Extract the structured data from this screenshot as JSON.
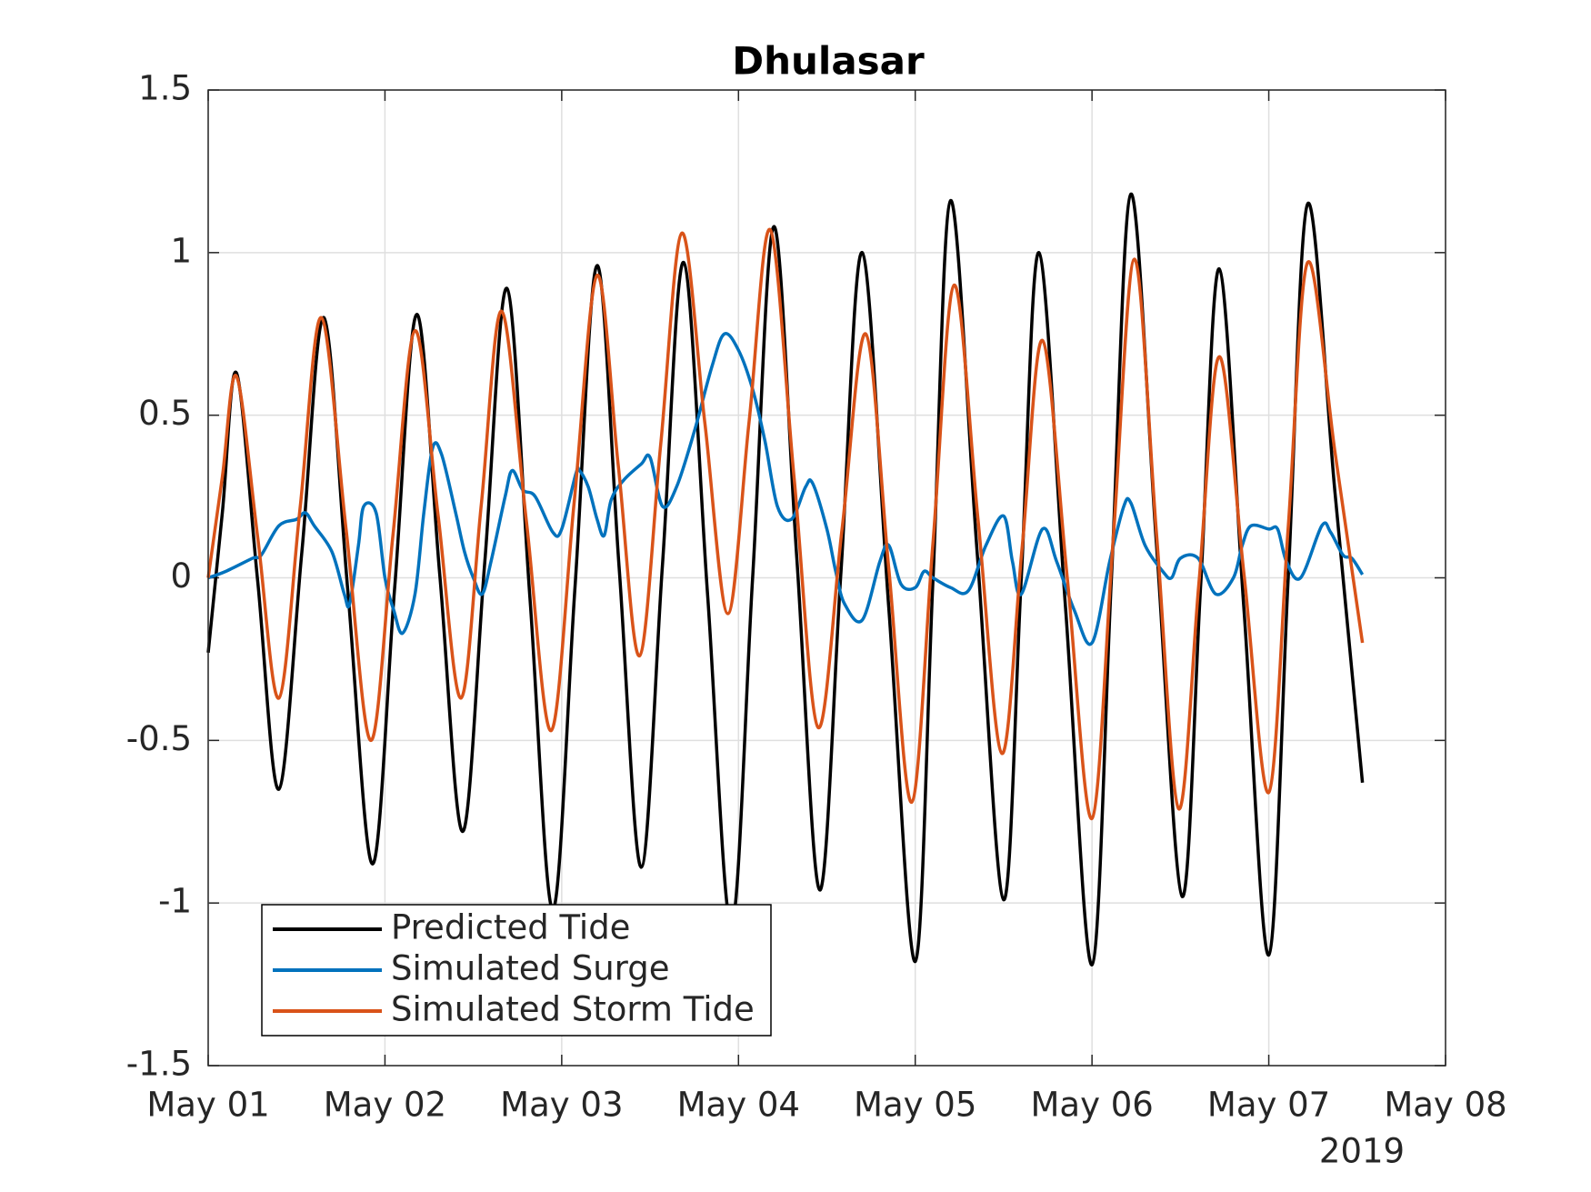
{
  "chart_data": {
    "type": "line",
    "title": "Dhulasar",
    "xlim": [
      0,
      7
    ],
    "xticks": [
      {
        "value": 0,
        "label": "May 01"
      },
      {
        "value": 1,
        "label": "May 02"
      },
      {
        "value": 2,
        "label": "May 03"
      },
      {
        "value": 3,
        "label": "May 04"
      },
      {
        "value": 4,
        "label": "May 05"
      },
      {
        "value": 5,
        "label": "May 06"
      },
      {
        "value": 6,
        "label": "May 07"
      },
      {
        "value": 7,
        "label": "May 08"
      }
    ],
    "x_year_label": "2019",
    "ylim": [
      -1.5,
      1.5
    ],
    "yticks": [
      -1.5,
      -1,
      -0.5,
      0,
      0.5,
      1,
      1.5
    ],
    "grid": true,
    "legend_position": "lower left",
    "series": [
      {
        "name": "Predicted Tide",
        "color": "#000000",
        "x": [
          0,
          0.08,
          0.16,
          0.28,
          0.4,
          0.53,
          0.655,
          0.79,
          0.93,
          1.055,
          1.18,
          1.31,
          1.44,
          1.565,
          1.69,
          1.82,
          1.95,
          2.075,
          2.2,
          2.325,
          2.45,
          2.57,
          2.69,
          2.825,
          2.96,
          3.08,
          3.2,
          3.33,
          3.46,
          3.58,
          3.7,
          3.85,
          4.0,
          4.1,
          4.2,
          4.35,
          4.5,
          4.6,
          4.7,
          4.85,
          5.0,
          5.11,
          5.22,
          5.365,
          5.51,
          5.615,
          5.72,
          5.86,
          6.0,
          6.11,
          6.22,
          6.375,
          6.53
        ],
        "values": [
          -0.23,
          0.2,
          0.63,
          -0.01,
          -0.65,
          0.08,
          0.8,
          -0.04,
          -0.88,
          -0.03,
          0.81,
          0.01,
          -0.78,
          0.05,
          0.89,
          -0.06,
          -1.02,
          -0.03,
          0.96,
          0.03,
          -0.89,
          0.04,
          0.97,
          -0.05,
          -1.07,
          0.0,
          1.08,
          0.06,
          -0.96,
          0.02,
          1.0,
          -0.09,
          -1.18,
          -0.01,
          1.16,
          0.08,
          -0.99,
          0.0,
          1.0,
          -0.09,
          -1.19,
          0.0,
          1.18,
          0.1,
          -0.98,
          -0.02,
          0.95,
          -0.1,
          -1.16,
          0.0,
          1.15,
          0.26,
          -0.63
        ]
      },
      {
        "name": "Simulated Surge",
        "color": "#0072BD",
        "x": [
          0,
          0.1,
          0.25,
          0.3,
          0.4,
          0.5,
          0.55,
          0.6,
          0.7,
          0.77,
          0.8,
          0.85,
          0.88,
          0.95,
          1.0,
          1.05,
          1.1,
          1.17,
          1.22,
          1.27,
          1.32,
          1.4,
          1.45,
          1.5,
          1.55,
          1.6,
          1.68,
          1.72,
          1.78,
          1.85,
          1.95,
          2.0,
          2.08,
          2.1,
          2.15,
          2.2,
          2.24,
          2.28,
          2.35,
          2.45,
          2.5,
          2.57,
          2.65,
          2.75,
          2.85,
          2.92,
          3.0,
          3.08,
          3.15,
          3.22,
          3.3,
          3.38,
          3.42,
          3.5,
          3.55,
          3.6,
          3.7,
          3.8,
          3.85,
          3.92,
          4.0,
          4.05,
          4.1,
          4.2,
          4.3,
          4.4,
          4.5,
          4.55,
          4.6,
          4.72,
          4.8,
          4.9,
          5.0,
          5.1,
          5.18,
          5.22,
          5.3,
          5.4,
          5.45,
          5.5,
          5.6,
          5.7,
          5.8,
          5.85,
          5.9,
          6.0,
          6.05,
          6.1,
          6.18,
          6.3,
          6.35,
          6.42,
          6.47,
          6.53
        ],
        "values": [
          0.0,
          0.02,
          0.06,
          0.07,
          0.16,
          0.18,
          0.2,
          0.16,
          0.08,
          -0.05,
          -0.08,
          0.1,
          0.22,
          0.2,
          0.0,
          -0.1,
          -0.17,
          -0.05,
          0.2,
          0.4,
          0.38,
          0.2,
          0.08,
          0.0,
          -0.05,
          0.05,
          0.25,
          0.33,
          0.27,
          0.25,
          0.14,
          0.15,
          0.32,
          0.33,
          0.28,
          0.18,
          0.13,
          0.24,
          0.3,
          0.35,
          0.37,
          0.22,
          0.28,
          0.45,
          0.65,
          0.75,
          0.7,
          0.58,
          0.42,
          0.22,
          0.18,
          0.28,
          0.29,
          0.15,
          0.02,
          -0.08,
          -0.13,
          0.05,
          0.1,
          -0.02,
          -0.03,
          0.02,
          0.0,
          -0.03,
          -0.04,
          0.1,
          0.19,
          0.05,
          -0.05,
          0.15,
          0.05,
          -0.1,
          -0.2,
          0.05,
          0.22,
          0.23,
          0.1,
          0.02,
          0.0,
          0.06,
          0.06,
          -0.05,
          0.0,
          0.1,
          0.16,
          0.15,
          0.15,
          0.05,
          0.0,
          0.16,
          0.14,
          0.07,
          0.06,
          0.01
        ]
      },
      {
        "name": "Simulated Storm Tide",
        "color": "#D95319",
        "x": [
          0,
          0.08,
          0.16,
          0.28,
          0.4,
          0.52,
          0.64,
          0.78,
          0.92,
          1.045,
          1.17,
          1.3,
          1.43,
          1.545,
          1.66,
          1.8,
          1.94,
          2.07,
          2.2,
          2.32,
          2.44,
          2.56,
          2.68,
          2.81,
          2.94,
          3.06,
          3.18,
          3.315,
          3.45,
          3.585,
          3.72,
          3.85,
          3.98,
          4.1,
          4.22,
          4.355,
          4.49,
          4.605,
          4.72,
          4.86,
          5.0,
          5.12,
          5.24,
          5.365,
          5.49,
          5.605,
          5.72,
          5.86,
          6.0,
          6.11,
          6.22,
          6.375,
          6.53
        ],
        "values": [
          0.0,
          0.31,
          0.62,
          0.125,
          -0.37,
          0.215,
          0.8,
          0.15,
          -0.5,
          0.13,
          0.76,
          0.195,
          -0.37,
          0.225,
          0.82,
          0.175,
          -0.47,
          0.23,
          0.93,
          0.345,
          -0.24,
          0.41,
          1.06,
          0.475,
          -0.11,
          0.48,
          1.07,
          0.305,
          -0.46,
          0.145,
          0.75,
          0.03,
          -0.69,
          0.105,
          0.9,
          0.18,
          -0.54,
          0.095,
          0.73,
          0.0,
          -0.74,
          0.12,
          0.98,
          0.135,
          -0.71,
          -0.015,
          0.68,
          0.01,
          -0.66,
          0.155,
          0.97,
          0.385,
          -0.2
        ]
      }
    ]
  }
}
